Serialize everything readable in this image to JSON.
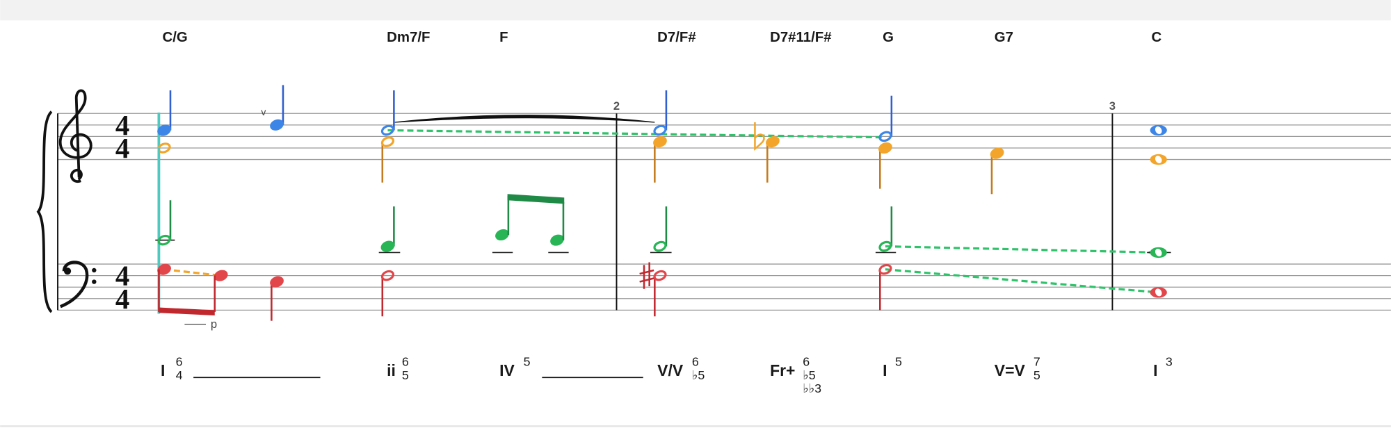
{
  "chord_symbols": [
    "C/G",
    "Dm7/F",
    "F",
    "D7/F#",
    "D7#11/F#",
    "G",
    "G7",
    "C"
  ],
  "measure_numbers": [
    "2",
    "3"
  ],
  "time_signature": [
    "4",
    "4"
  ],
  "marks": [
    "v",
    "p"
  ],
  "analysis": [
    {
      "numeral": "I",
      "figures": [
        "6",
        "4"
      ]
    },
    {
      "numeral": "ii",
      "figures": [
        "6",
        "5"
      ]
    },
    {
      "numeral": "IV",
      "figures": [
        "5"
      ]
    },
    {
      "numeral": "V/V",
      "figures": [
        "6",
        "♭5"
      ]
    },
    {
      "numeral": "Fr+",
      "figures": [
        "6",
        "♭5",
        "♭♭3"
      ]
    },
    {
      "numeral": "I",
      "figures": [
        "5"
      ]
    },
    {
      "numeral": "V=V",
      "figures": [
        "7",
        "5"
      ]
    },
    {
      "numeral": "I",
      "figures": [
        "3"
      ]
    }
  ]
}
